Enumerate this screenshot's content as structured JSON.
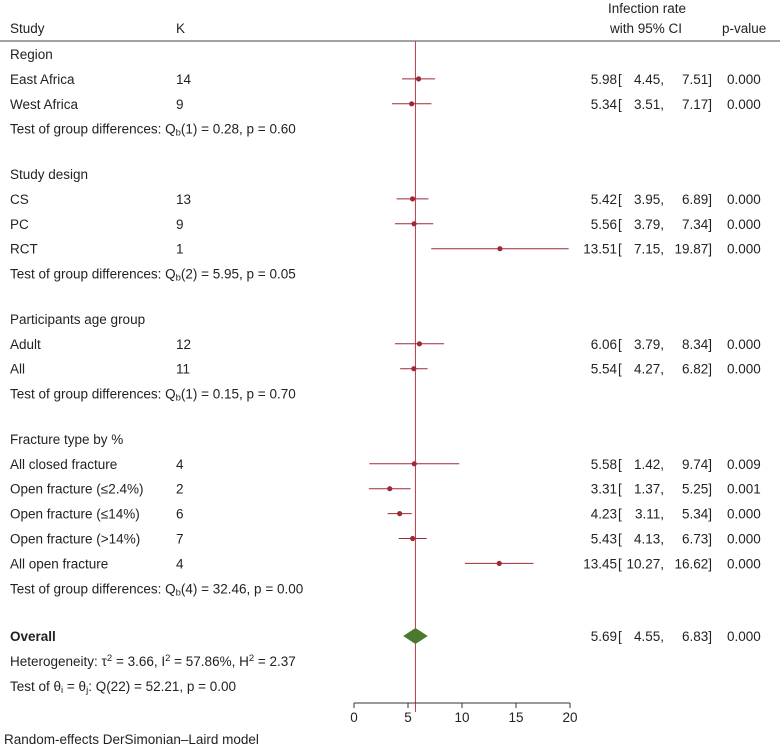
{
  "chart_data": {
    "type": "forest",
    "headers": {
      "study": "Study",
      "k": "K",
      "effect_line1": "Infection rate",
      "effect_line2": "with 95% CI",
      "pvalue": "p-value"
    },
    "xlim": [
      0,
      20
    ],
    "xticks": [
      "0",
      "5",
      "10",
      "15",
      "20"
    ],
    "null_line": 5.69,
    "colors": {
      "marker": "#9e2a38",
      "ci": "#9e2a38",
      "ref_line": "#c23b4a",
      "overall": "#4a7a2e",
      "axis": "#333333"
    },
    "groups": [
      {
        "title": "Region",
        "rows": [
          {
            "label": "East Africa",
            "k": "14",
            "est": 5.98,
            "lo": 4.45,
            "hi": 7.51,
            "p": "0.000"
          },
          {
            "label": "West Africa",
            "k": "9",
            "est": 5.34,
            "lo": 3.51,
            "hi": 7.17,
            "p": "0.000"
          }
        ],
        "test_prefix": "Test of group differences: Q",
        "test_sub": "b",
        "test_suffix": "(1) = 0.28, p = 0.60"
      },
      {
        "title": "Study design",
        "rows": [
          {
            "label": "CS",
            "k": "13",
            "est": 5.42,
            "lo": 3.95,
            "hi": 6.89,
            "p": "0.000"
          },
          {
            "label": "PC",
            "k": "9",
            "est": 5.56,
            "lo": 3.79,
            "hi": 7.34,
            "p": "0.000"
          },
          {
            "label": "RCT",
            "k": "1",
            "est": 13.51,
            "lo": 7.15,
            "hi": 19.87,
            "p": "0.000"
          }
        ],
        "test_prefix": "Test of group differences: Q",
        "test_sub": "b",
        "test_suffix": "(2) = 5.95, p = 0.05"
      },
      {
        "title": "Participants age group",
        "rows": [
          {
            "label": "Adult",
            "k": "12",
            "est": 6.06,
            "lo": 3.79,
            "hi": 8.34,
            "p": "0.000"
          },
          {
            "label": "All",
            "k": "11",
            "est": 5.54,
            "lo": 4.27,
            "hi": 6.82,
            "p": "0.000"
          }
        ],
        "test_prefix": "Test of group differences: Q",
        "test_sub": "b",
        "test_suffix": "(1) = 0.15, p = 0.70"
      },
      {
        "title": "Fracture type by %",
        "rows": [
          {
            "label": "All closed fracture",
            "k": "4",
            "est": 5.58,
            "lo": 1.42,
            "hi": 9.74,
            "p": "0.009"
          },
          {
            "label": "Open fracture (≤2.4%)",
            "k": "2",
            "est": 3.31,
            "lo": 1.37,
            "hi": 5.25,
            "p": "0.001"
          },
          {
            "label": "Open fracture (≤14%)",
            "k": "6",
            "est": 4.23,
            "lo": 3.11,
            "hi": 5.34,
            "p": "0.000"
          },
          {
            "label": "Open fracture (>14%)",
            "k": "7",
            "est": 5.43,
            "lo": 4.13,
            "hi": 6.73,
            "p": "0.000"
          },
          {
            "label": "All open fracture",
            "k": "4",
            "est": 13.45,
            "lo": 10.27,
            "hi": 16.62,
            "p": "0.000"
          }
        ],
        "test_prefix": "Test of group differences: Q",
        "test_sub": "b",
        "test_suffix": "(4) = 32.46, p = 0.00"
      }
    ],
    "overall": {
      "label": "Overall",
      "est": 5.69,
      "lo": 4.55,
      "hi": 6.83,
      "p": "0.000",
      "het_a": "Heterogeneity: τ",
      "het_a_sup": "2",
      "het_b": " = 3.66, I",
      "het_b_sup": "2",
      "het_c": " = 57.86%, H",
      "het_c_sup": "2",
      "het_d": " = 2.37",
      "theta_a": "Test of θ",
      "theta_sub1": "i",
      "theta_b": " = θ",
      "theta_sub2": "j",
      "theta_c": ": Q(22) = 52.21, p = 0.00"
    },
    "footnote": "Random-effects DerSimonian–Laird model"
  }
}
